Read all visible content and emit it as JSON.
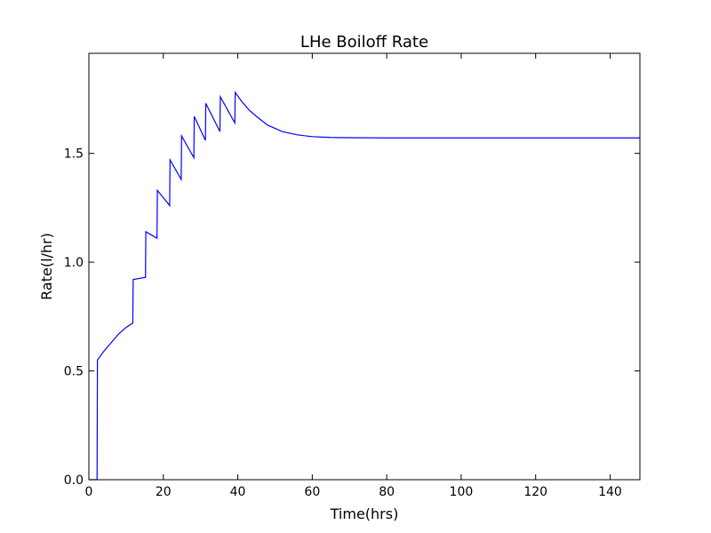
{
  "chart_data": {
    "type": "line",
    "title": "LHe Boiloff Rate",
    "xlabel": "Time(hrs)",
    "ylabel": "Rate(l/hr)",
    "xlim": [
      0,
      148
    ],
    "ylim": [
      0,
      1.96
    ],
    "xticks": [
      0,
      20,
      40,
      60,
      80,
      100,
      120,
      140
    ],
    "yticks": [
      0.0,
      0.5,
      1.0,
      1.5
    ],
    "xtick_labels": [
      "0",
      "20",
      "40",
      "60",
      "80",
      "100",
      "120",
      "140"
    ],
    "ytick_labels": [
      "0.0",
      "0.5",
      "1.0",
      "1.5"
    ],
    "grid": false,
    "legend": "none",
    "line_color": "#0000ff",
    "series": [
      {
        "x": [
          0,
          2.2,
          2.3,
          4,
          6,
          8,
          10,
          11.8,
          11.9,
          15.2,
          15.3,
          18.3,
          18.4,
          21.7,
          21.8,
          24.8,
          24.9,
          28.2,
          28.3,
          31.3,
          31.4,
          35.2,
          35.3,
          39.2,
          39.3,
          41,
          43,
          45,
          48,
          52,
          56,
          60,
          65,
          70,
          80,
          90,
          100,
          110,
          120,
          130,
          140,
          148
        ],
        "y": [
          0,
          0,
          0.55,
          0.59,
          0.63,
          0.67,
          0.7,
          0.72,
          0.92,
          0.93,
          1.14,
          1.11,
          1.33,
          1.26,
          1.47,
          1.38,
          1.58,
          1.48,
          1.67,
          1.56,
          1.73,
          1.6,
          1.76,
          1.64,
          1.78,
          1.74,
          1.7,
          1.67,
          1.63,
          1.6,
          1.585,
          1.577,
          1.573,
          1.572,
          1.571,
          1.571,
          1.571,
          1.571,
          1.571,
          1.571,
          1.571,
          1.571
        ]
      }
    ]
  }
}
